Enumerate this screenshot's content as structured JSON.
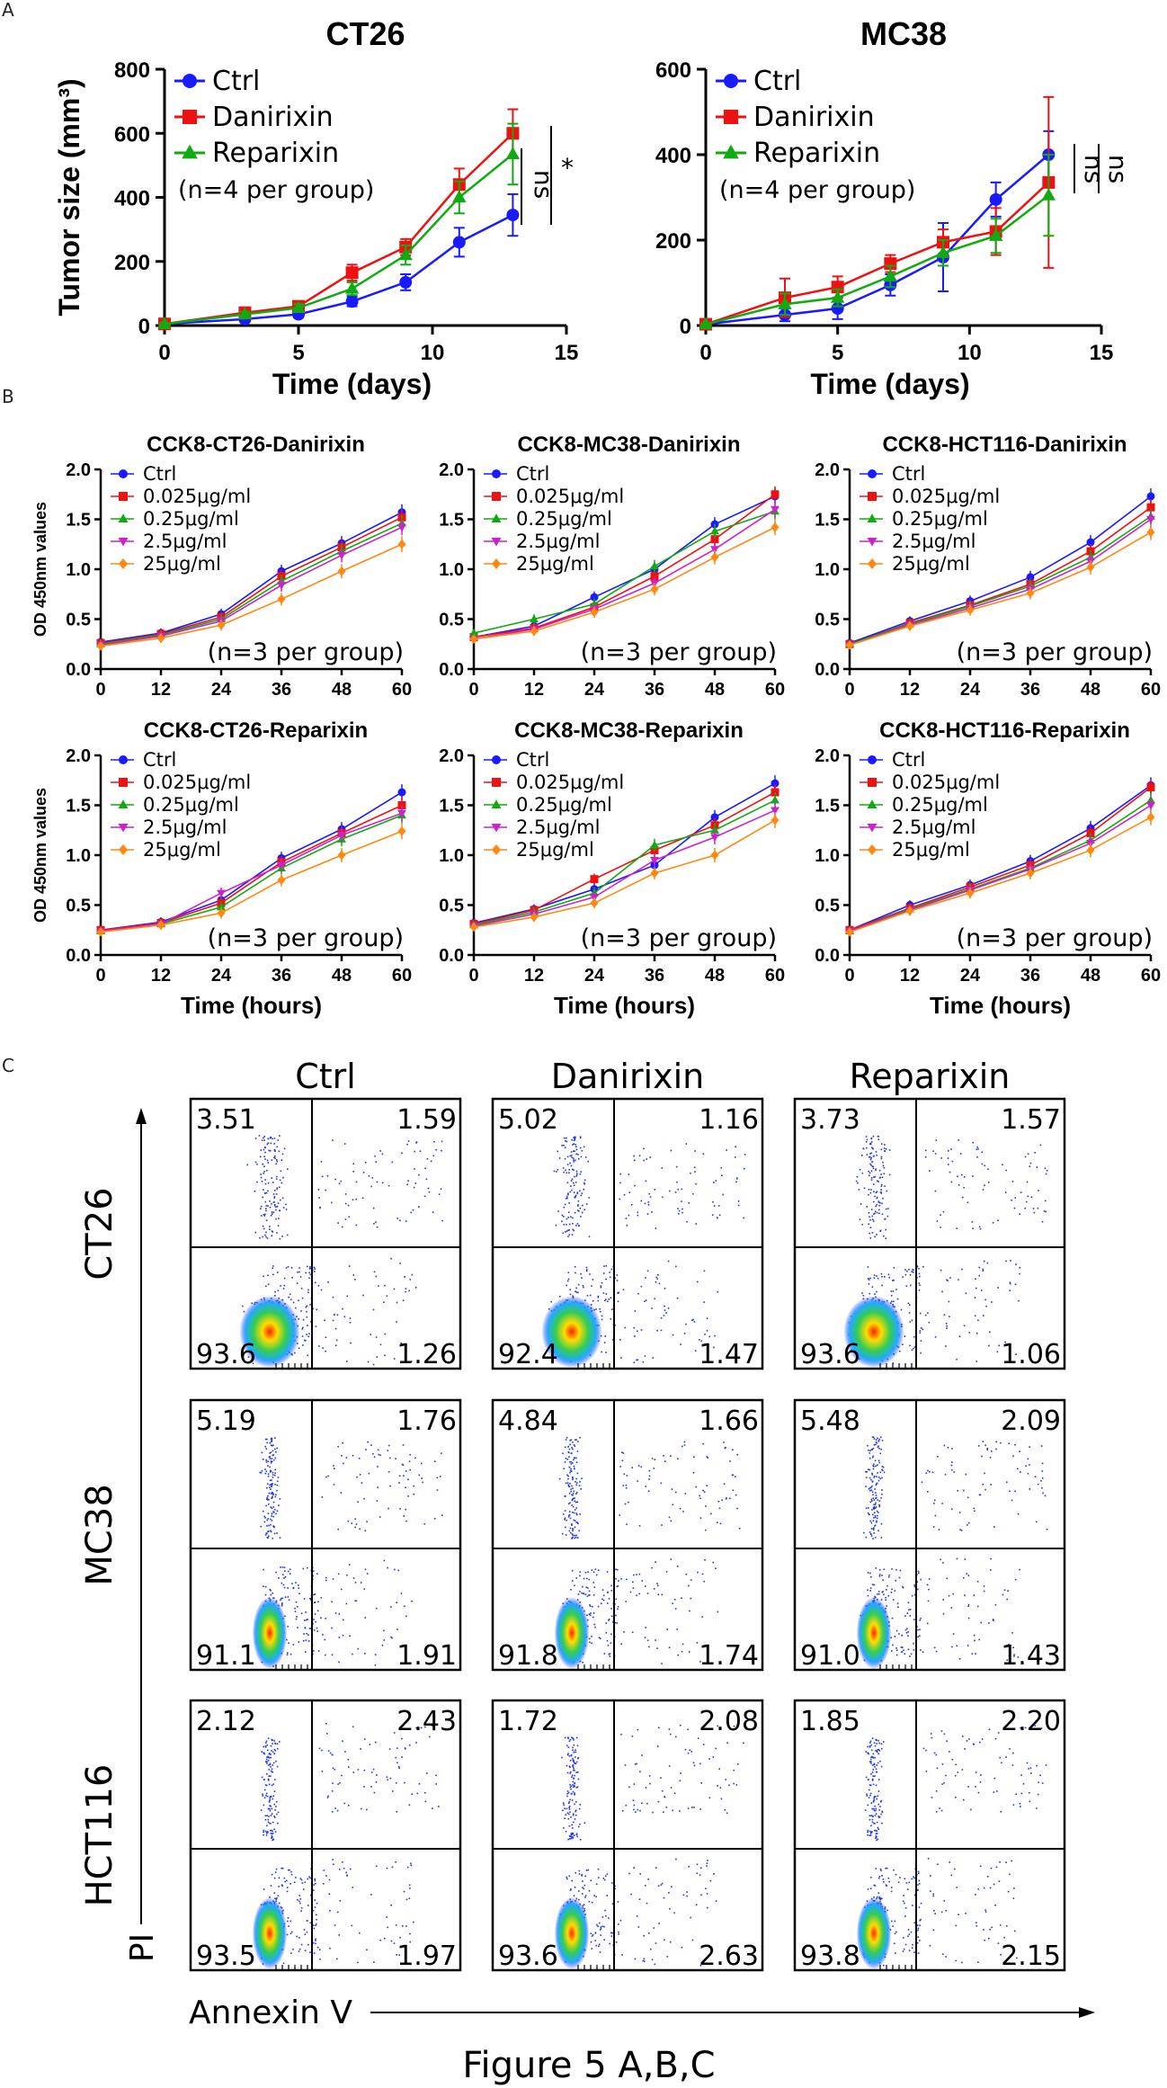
{
  "colors": {
    "ctrl": "#1a1aff",
    "danirixin": "#ee1111",
    "reparixin": "#11aa11",
    "c2_5": "#cc22cc",
    "c25": "#ff8811",
    "ctrl_small": "#1a1aff",
    "c0025": "#ee1111",
    "c025": "#11aa11"
  },
  "labels": {
    "panel_a": "A",
    "panel_b": "B",
    "panel_c": "C",
    "caption": "Figure 5 A,B,C"
  },
  "chart_data": [
    {
      "id": "A1",
      "type": "line",
      "title": "CT26",
      "xlabel": "Time (days)",
      "ylabel": "Tumor size (mm³)",
      "xlim": [
        0,
        15
      ],
      "ylim": [
        0,
        800
      ],
      "xticks": [
        0,
        5,
        10,
        15
      ],
      "yticks": [
        0,
        200,
        400,
        600,
        800
      ],
      "x": [
        0,
        3,
        5,
        7,
        9,
        11,
        13
      ],
      "series": [
        {
          "name": "Ctrl",
          "color": "#1a1aff",
          "marker": "circle",
          "values": [
            5,
            20,
            35,
            75,
            135,
            260,
            345
          ],
          "err": [
            3,
            8,
            10,
            15,
            25,
            45,
            65
          ]
        },
        {
          "name": "Danirixin",
          "color": "#ee1111",
          "marker": "square",
          "values": [
            5,
            40,
            60,
            165,
            245,
            440,
            600
          ],
          "err": [
            3,
            10,
            12,
            25,
            25,
            50,
            75
          ]
        },
        {
          "name": "Reparixin",
          "color": "#11aa11",
          "marker": "triangle",
          "values": [
            5,
            35,
            55,
            115,
            220,
            400,
            535
          ],
          "err": [
            3,
            8,
            12,
            20,
            30,
            50,
            95
          ]
        }
      ],
      "note": "(n=4 per group)",
      "annotations": [
        {
          "text": "ns"
        },
        {
          "text": "*"
        }
      ]
    },
    {
      "id": "A2",
      "type": "line",
      "title": "MC38",
      "xlabel": "Time (days)",
      "ylabel": "",
      "xlim": [
        0,
        15
      ],
      "ylim": [
        0,
        600
      ],
      "xticks": [
        0,
        5,
        10,
        15
      ],
      "yticks": [
        0,
        200,
        400,
        600
      ],
      "x": [
        0,
        3,
        5,
        7,
        9,
        11,
        13
      ],
      "series": [
        {
          "name": "Ctrl",
          "color": "#1a1aff",
          "marker": "circle",
          "values": [
            3,
            25,
            40,
            95,
            160,
            295,
            400
          ],
          "err": [
            2,
            15,
            25,
            25,
            80,
            40,
            55
          ]
        },
        {
          "name": "Danirixin",
          "color": "#ee1111",
          "marker": "square",
          "values": [
            3,
            65,
            90,
            145,
            195,
            220,
            335
          ],
          "err": [
            2,
            45,
            25,
            20,
            30,
            55,
            200
          ]
        },
        {
          "name": "Reparixin",
          "color": "#11aa11",
          "marker": "triangle",
          "values": [
            3,
            50,
            65,
            115,
            170,
            210,
            305
          ],
          "err": [
            2,
            25,
            20,
            25,
            30,
            40,
            95
          ]
        }
      ],
      "note": "(n=4 per group)",
      "annotations": [
        {
          "text": "ns"
        },
        {
          "text": "ns"
        }
      ]
    },
    {
      "id": "B1",
      "type": "line",
      "title": "CCK8-CT26-Danirixin",
      "xlabel": "",
      "ylabel": "OD 450nm values",
      "xlim": [
        0,
        60
      ],
      "ylim": [
        0,
        2.0
      ],
      "xticks": [
        0,
        12,
        24,
        36,
        48,
        60
      ],
      "yticks": [
        "0.0",
        "0.5",
        "1.0",
        "1.5",
        "2.0"
      ],
      "x": [
        0,
        12,
        24,
        36,
        48,
        60
      ],
      "note": "(n=3 per group)",
      "series": [
        {
          "name": "Ctrl",
          "values": [
            0.27,
            0.36,
            0.55,
            0.98,
            1.26,
            1.57
          ]
        },
        {
          "name": "0.025μg/ml",
          "values": [
            0.26,
            0.35,
            0.52,
            0.93,
            1.22,
            1.52
          ]
        },
        {
          "name": "0.25μg/ml",
          "values": [
            0.25,
            0.34,
            0.5,
            0.88,
            1.18,
            1.46
          ]
        },
        {
          "name": "2.5μg/ml",
          "values": [
            0.24,
            0.33,
            0.48,
            0.84,
            1.14,
            1.42
          ]
        },
        {
          "name": "25μg/ml",
          "values": [
            0.23,
            0.31,
            0.44,
            0.7,
            0.98,
            1.25
          ]
        }
      ]
    },
    {
      "id": "B2",
      "type": "line",
      "title": "CCK8-MC38-Danirixin",
      "xlabel": "",
      "ylabel": "",
      "xlim": [
        0,
        60
      ],
      "ylim": [
        0,
        2.0
      ],
      "xticks": [
        0,
        12,
        24,
        36,
        48,
        60
      ],
      "yticks": [
        "0.0",
        "0.5",
        "1.0",
        "1.5",
        "2.0"
      ],
      "x": [
        0,
        12,
        24,
        36,
        48,
        60
      ],
      "note": "(n=3 per group)",
      "series": [
        {
          "name": "Ctrl",
          "values": [
            0.32,
            0.43,
            0.72,
            1.0,
            1.45,
            1.73
          ]
        },
        {
          "name": "0.025μg/ml",
          "values": [
            0.32,
            0.41,
            0.62,
            0.93,
            1.3,
            1.75
          ]
        },
        {
          "name": "0.25μg/ml",
          "values": [
            0.36,
            0.5,
            0.65,
            1.03,
            1.38,
            1.58
          ]
        },
        {
          "name": "2.5μg/ml",
          "values": [
            0.3,
            0.4,
            0.6,
            0.86,
            1.2,
            1.6
          ]
        },
        {
          "name": "25μg/ml",
          "values": [
            0.3,
            0.38,
            0.57,
            0.8,
            1.12,
            1.42
          ]
        }
      ]
    },
    {
      "id": "B3",
      "type": "line",
      "title": "CCK8-HCT116-Danirixin",
      "xlabel": "",
      "ylabel": "",
      "xlim": [
        0,
        60
      ],
      "ylim": [
        0,
        2.0
      ],
      "xticks": [
        0,
        12,
        24,
        36,
        48,
        60
      ],
      "yticks": [
        "0.0",
        "0.5",
        "1.0",
        "1.5",
        "2.0"
      ],
      "x": [
        0,
        12,
        24,
        36,
        48,
        60
      ],
      "note": "(n=3 per group)",
      "series": [
        {
          "name": "Ctrl",
          "values": [
            0.26,
            0.48,
            0.68,
            0.92,
            1.27,
            1.73
          ]
        },
        {
          "name": "0.025μg/ml",
          "values": [
            0.25,
            0.46,
            0.64,
            0.85,
            1.18,
            1.62
          ]
        },
        {
          "name": "0.25μg/ml",
          "values": [
            0.25,
            0.45,
            0.63,
            0.83,
            1.12,
            1.53
          ]
        },
        {
          "name": "2.5μg/ml",
          "values": [
            0.24,
            0.44,
            0.61,
            0.8,
            1.08,
            1.5
          ]
        },
        {
          "name": "25μg/ml",
          "values": [
            0.24,
            0.43,
            0.59,
            0.76,
            1.02,
            1.37
          ]
        }
      ]
    },
    {
      "id": "B4",
      "type": "line",
      "title": "CCK8-CT26-Reparixin",
      "xlabel": "Time (hours)",
      "ylabel": "OD 450nm values",
      "xlim": [
        0,
        60
      ],
      "ylim": [
        0,
        2.0
      ],
      "xticks": [
        0,
        12,
        24,
        36,
        48,
        60
      ],
      "yticks": [
        "0.0",
        "0.5",
        "1.0",
        "1.5",
        "2.0"
      ],
      "x": [
        0,
        12,
        24,
        36,
        48,
        60
      ],
      "note": "(n=3 per group)",
      "series": [
        {
          "name": "Ctrl",
          "values": [
            0.25,
            0.33,
            0.55,
            0.97,
            1.26,
            1.63
          ]
        },
        {
          "name": "0.025μg/ml",
          "values": [
            0.25,
            0.32,
            0.52,
            0.93,
            1.22,
            1.5
          ]
        },
        {
          "name": "0.25μg/ml",
          "values": [
            0.24,
            0.31,
            0.48,
            0.87,
            1.16,
            1.4
          ]
        },
        {
          "name": "2.5μg/ml",
          "values": [
            0.24,
            0.31,
            0.62,
            0.9,
            1.2,
            1.42
          ]
        },
        {
          "name": "25μg/ml",
          "values": [
            0.23,
            0.3,
            0.42,
            0.75,
            1.0,
            1.24
          ]
        }
      ]
    },
    {
      "id": "B5",
      "type": "line",
      "title": "CCK8-MC38-Reparixin",
      "xlabel": "Time (hours)",
      "ylabel": "",
      "xlim": [
        0,
        60
      ],
      "ylim": [
        0,
        2.0
      ],
      "xticks": [
        0,
        12,
        24,
        36,
        48,
        60
      ],
      "yticks": [
        "0.0",
        "0.5",
        "1.0",
        "1.5",
        "2.0"
      ],
      "x": [
        0,
        12,
        24,
        36,
        48,
        60
      ],
      "note": "(n=3 per group)",
      "series": [
        {
          "name": "Ctrl",
          "values": [
            0.32,
            0.46,
            0.66,
            0.9,
            1.38,
            1.72
          ]
        },
        {
          "name": "0.025μg/ml",
          "values": [
            0.31,
            0.45,
            0.76,
            1.05,
            1.3,
            1.63
          ]
        },
        {
          "name": "0.25μg/ml",
          "values": [
            0.3,
            0.43,
            0.62,
            1.1,
            1.25,
            1.55
          ]
        },
        {
          "name": "2.5μg/ml",
          "values": [
            0.29,
            0.41,
            0.58,
            0.95,
            1.18,
            1.45
          ]
        },
        {
          "name": "25μg/ml",
          "values": [
            0.28,
            0.38,
            0.52,
            0.82,
            1.0,
            1.35
          ]
        }
      ]
    },
    {
      "id": "B6",
      "type": "line",
      "title": "CCK8-HCT116-Reparixin",
      "xlabel": "Time (hours)",
      "ylabel": "",
      "xlim": [
        0,
        60
      ],
      "ylim": [
        0,
        2.0
      ],
      "xticks": [
        0,
        12,
        24,
        36,
        48,
        60
      ],
      "yticks": [
        "0.0",
        "0.5",
        "1.0",
        "1.5",
        "2.0"
      ],
      "x": [
        0,
        12,
        24,
        36,
        48,
        60
      ],
      "note": "(n=3 per group)",
      "series": [
        {
          "name": "Ctrl",
          "values": [
            0.25,
            0.5,
            0.7,
            0.94,
            1.27,
            1.7
          ]
        },
        {
          "name": "0.025μg/ml",
          "values": [
            0.25,
            0.47,
            0.68,
            0.9,
            1.22,
            1.68
          ]
        },
        {
          "name": "0.25μg/ml",
          "values": [
            0.24,
            0.46,
            0.66,
            0.87,
            1.15,
            1.55
          ]
        },
        {
          "name": "2.5μg/ml",
          "values": [
            0.24,
            0.45,
            0.65,
            0.86,
            1.12,
            1.5
          ]
        },
        {
          "name": "25μg/ml",
          "values": [
            0.23,
            0.44,
            0.62,
            0.82,
            1.05,
            1.38
          ]
        }
      ]
    }
  ],
  "flow": {
    "columns": [
      "Ctrl",
      "Danirixin",
      "Reparixin"
    ],
    "rows": [
      "CT26",
      "MC38",
      "HCT116"
    ],
    "x_axis": "Annexin V",
    "y_axis": "PI",
    "quadrants": [
      [
        [
          "3.51",
          "1.59",
          "93.6",
          "1.26"
        ],
        [
          "5.02",
          "1.16",
          "92.4",
          "1.47"
        ],
        [
          "3.73",
          "1.57",
          "93.6",
          "1.06"
        ]
      ],
      [
        [
          "5.19",
          "1.76",
          "91.1",
          "1.91"
        ],
        [
          "4.84",
          "1.66",
          "91.8",
          "1.74"
        ],
        [
          "5.48",
          "2.09",
          "91.0",
          "1.43"
        ]
      ],
      [
        [
          "2.12",
          "2.43",
          "93.5",
          "1.97"
        ],
        [
          "1.72",
          "2.08",
          "93.6",
          "2.63"
        ],
        [
          "1.85",
          "2.20",
          "93.8",
          "2.15"
        ]
      ]
    ]
  }
}
